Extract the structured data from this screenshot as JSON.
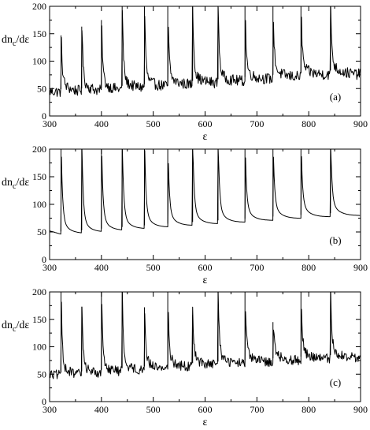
{
  "chart_data": [
    {
      "id": "a",
      "type": "line",
      "panel_label": "(a)",
      "xlabel": "ε",
      "ylabel_main": "dn",
      "ylabel_sub": "c",
      "ylabel_tail": "/dε",
      "xlim": [
        300,
        900
      ],
      "ylim": [
        0,
        200
      ],
      "xticks": [
        "300",
        "400",
        "500",
        "600",
        "700",
        "800",
        "900"
      ],
      "yticks": [
        "0",
        "50",
        "100",
        "150",
        "200"
      ],
      "peaks": [
        {
          "x": 322,
          "peak": 147,
          "base": 44
        },
        {
          "x": 362,
          "peak": 163,
          "base": 45
        },
        {
          "x": 400,
          "peak": 175,
          "base": 46
        },
        {
          "x": 440,
          "peak": 200,
          "base": 50
        },
        {
          "x": 483,
          "peak": 200,
          "base": 53
        },
        {
          "x": 528,
          "peak": 200,
          "base": 56
        },
        {
          "x": 576,
          "peak": 200,
          "base": 59
        },
        {
          "x": 625,
          "peak": 200,
          "base": 62
        },
        {
          "x": 677,
          "peak": 200,
          "base": 66
        },
        {
          "x": 731,
          "peak": 200,
          "base": 70
        },
        {
          "x": 785,
          "peak": 200,
          "base": 74
        },
        {
          "x": 842,
          "peak": 200,
          "base": 78
        }
      ],
      "start_y": 45,
      "end_y": 72,
      "noise": 10
    },
    {
      "id": "b",
      "type": "line",
      "panel_label": "(b)",
      "xlabel": "ε",
      "ylabel_main": "dn",
      "ylabel_sub": "c",
      "ylabel_tail": "/dε",
      "xlim": [
        300,
        900
      ],
      "ylim": [
        0,
        200
      ],
      "xticks": [
        "300",
        "400",
        "500",
        "600",
        "700",
        "800",
        "900"
      ],
      "yticks": [
        "0",
        "50",
        "100",
        "150",
        "200"
      ],
      "peaks": [
        {
          "x": 322,
          "peak": 200,
          "base": 46
        },
        {
          "x": 362,
          "peak": 200,
          "base": 48
        },
        {
          "x": 400,
          "peak": 200,
          "base": 51
        },
        {
          "x": 440,
          "peak": 200,
          "base": 54
        },
        {
          "x": 483,
          "peak": 200,
          "base": 57
        },
        {
          "x": 528,
          "peak": 200,
          "base": 60
        },
        {
          "x": 576,
          "peak": 200,
          "base": 63
        },
        {
          "x": 625,
          "peak": 200,
          "base": 66
        },
        {
          "x": 677,
          "peak": 200,
          "base": 69
        },
        {
          "x": 731,
          "peak": 200,
          "base": 73
        },
        {
          "x": 785,
          "peak": 200,
          "base": 76
        },
        {
          "x": 842,
          "peak": 200,
          "base": 79
        }
      ],
      "start_y": 52,
      "end_y": 80,
      "noise": 0
    },
    {
      "id": "c",
      "type": "line",
      "panel_label": "(c)",
      "xlabel": "ε",
      "ylabel_main": "dn",
      "ylabel_sub": "c",
      "ylabel_tail": "/dε",
      "xlim": [
        300,
        900
      ],
      "ylim": [
        0,
        200
      ],
      "xticks": [
        "300",
        "400",
        "500",
        "600",
        "700",
        "800",
        "900"
      ],
      "yticks": [
        "0",
        "50",
        "100",
        "150",
        "200"
      ],
      "peaks": [
        {
          "x": 322,
          "peak": 200,
          "base": 48
        },
        {
          "x": 362,
          "peak": 173,
          "base": 50
        },
        {
          "x": 400,
          "peak": 200,
          "base": 53
        },
        {
          "x": 440,
          "peak": 200,
          "base": 56
        },
        {
          "x": 483,
          "peak": 172,
          "base": 59
        },
        {
          "x": 528,
          "peak": 200,
          "base": 62
        },
        {
          "x": 576,
          "peak": 158,
          "base": 65
        },
        {
          "x": 625,
          "peak": 200,
          "base": 68
        },
        {
          "x": 677,
          "peak": 200,
          "base": 71
        },
        {
          "x": 731,
          "peak": 145,
          "base": 74
        },
        {
          "x": 785,
          "peak": 200,
          "base": 77
        },
        {
          "x": 842,
          "peak": 200,
          "base": 80
        }
      ],
      "start_y": 50,
      "end_y": 78,
      "noise": 9
    }
  ]
}
